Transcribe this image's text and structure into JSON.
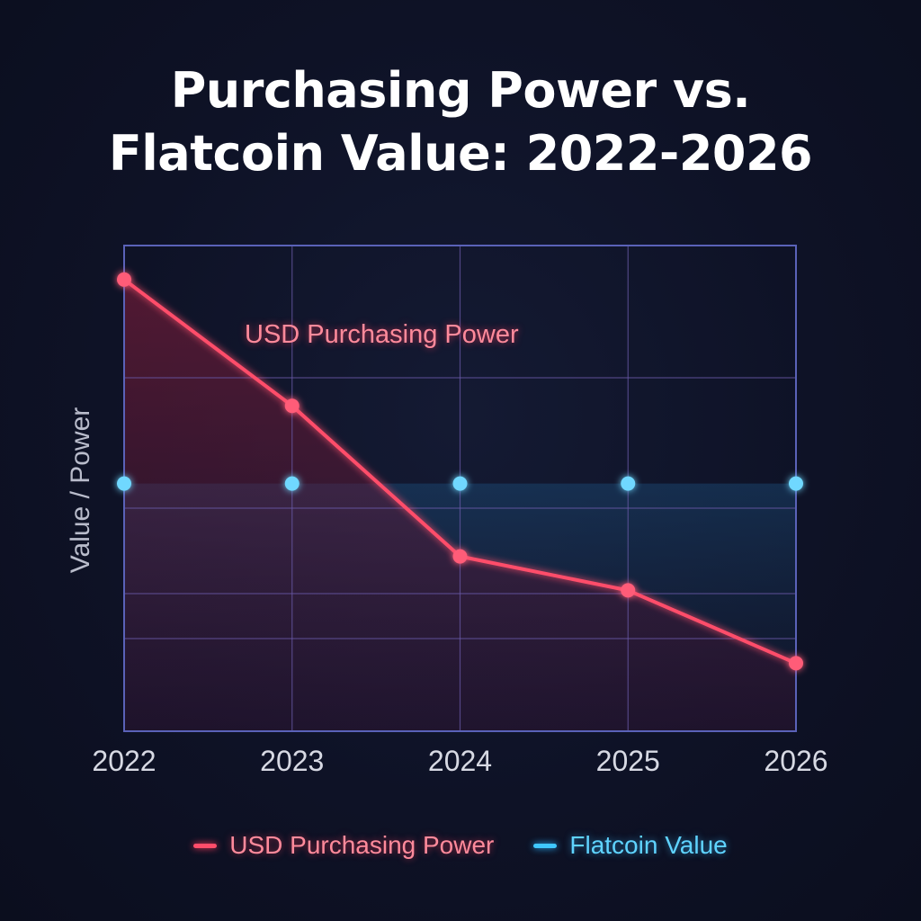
{
  "chart_data": {
    "type": "line",
    "title": "Purchasing Power vs. Flatcoin Value: 2022-2026",
    "title_lines": [
      "Purchasing Power vs.",
      "Flatcoin Value: 2022-2026"
    ],
    "xlabel": "",
    "ylabel": "Value / Power",
    "categories": [
      "2022",
      "2023",
      "2024",
      "2025",
      "2026"
    ],
    "series": [
      {
        "name": "USD Purchasing Power",
        "color": "#ff4d6a",
        "values": [
          93,
          67,
          36,
          29,
          14
        ]
      },
      {
        "name": "Flatcoin Value",
        "color": "#3fc8ff",
        "values": [
          51,
          51,
          51,
          51,
          51
        ]
      }
    ],
    "ylim": [
      0,
      100
    ],
    "y_ticks_shown": false,
    "grid": true,
    "annotations": [
      {
        "text": "USD Purchasing Power",
        "near": "2023"
      }
    ],
    "legend_position": "bottom",
    "area_fill_under_usd": true
  },
  "legend": {
    "usd_label": "USD Purchasing Power",
    "flat_label": "Flatcoin Value"
  },
  "colors": {
    "background": "#0e1226",
    "grid": "#6a5aa8",
    "usd": "#ff4d6a",
    "flatcoin": "#3fc8ff",
    "title": "#ffffff"
  }
}
